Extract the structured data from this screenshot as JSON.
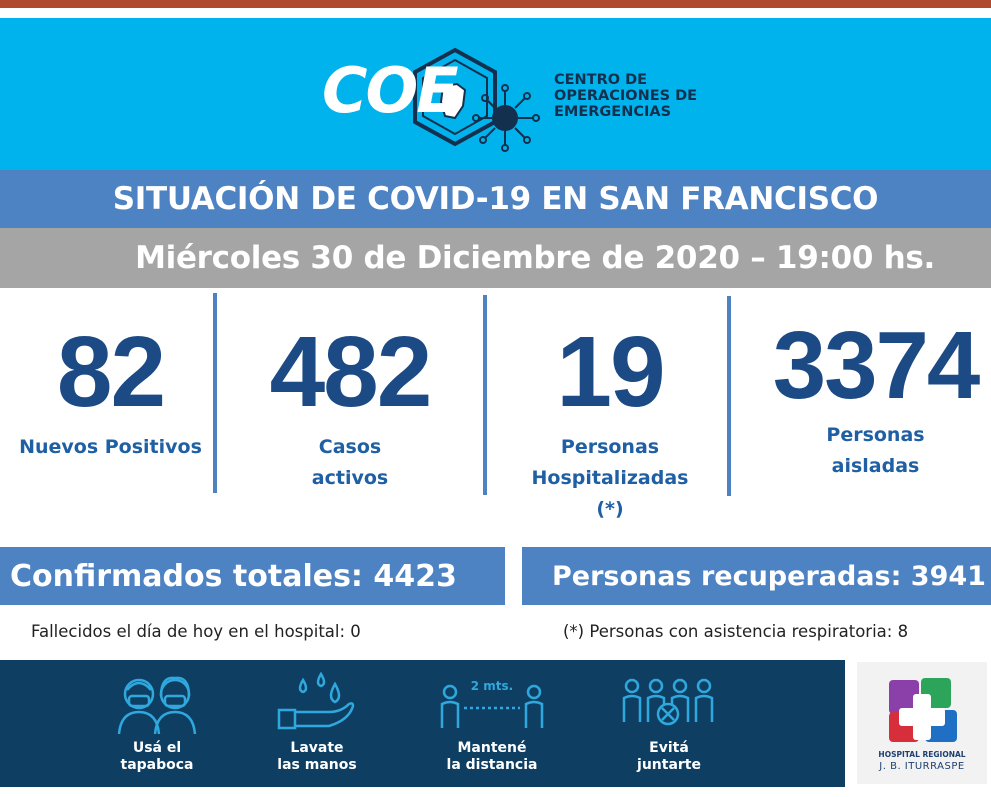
{
  "header": {
    "logo_text": "COE",
    "org_name_lines": [
      "CENTRO DE",
      "OPERACIONES DE",
      "EMERGENCIAS"
    ]
  },
  "title": "SITUACIÓN DE COVID-19 EN SAN FRANCISCO",
  "date_line": "Miércoles 30 de Diciembre de 2020 – 19:00 hs.",
  "stats": [
    {
      "value": "82",
      "label_lines": [
        "Nuevos Positivos"
      ]
    },
    {
      "value": "482",
      "label_lines": [
        "Casos",
        "activos"
      ]
    },
    {
      "value": "19",
      "label_lines": [
        "Personas",
        "Hospitalizadas",
        "(*)"
      ]
    },
    {
      "value": "3374",
      "label_lines": [
        "Personas",
        "aisladas"
      ]
    }
  ],
  "totals": {
    "confirmed": "Confirmados totales: 4423",
    "recovered": "Personas recuperadas: 3941"
  },
  "footnotes": {
    "deaths": "Fallecidos el día de hoy en el hospital: 0",
    "respiratory": "(*) Personas con asistencia respiratoria: 8"
  },
  "tips": [
    {
      "icon": "mask-icon",
      "label_lines": [
        "Usá el",
        "tapaboca"
      ]
    },
    {
      "icon": "hand-washing-icon",
      "label_lines": [
        "Lavate",
        "las manos"
      ]
    },
    {
      "icon": "distance-icon",
      "label_lines": [
        "Mantené",
        "la distancia"
      ],
      "distance_label": "2 mts."
    },
    {
      "icon": "no-crowds-icon",
      "label_lines": [
        "Evitá",
        "juntarte"
      ]
    }
  ],
  "hospital": {
    "name_line1": "HOSPITAL REGIONAL",
    "name_line2": "J. B. ITURRASPE"
  },
  "colors": {
    "header_cyan": "#00b3ec",
    "band_blue": "#4d82c3",
    "date_gray": "#a5a5a5",
    "number_blue": "#1c4a85",
    "bottom_navy": "#0e3f63"
  }
}
